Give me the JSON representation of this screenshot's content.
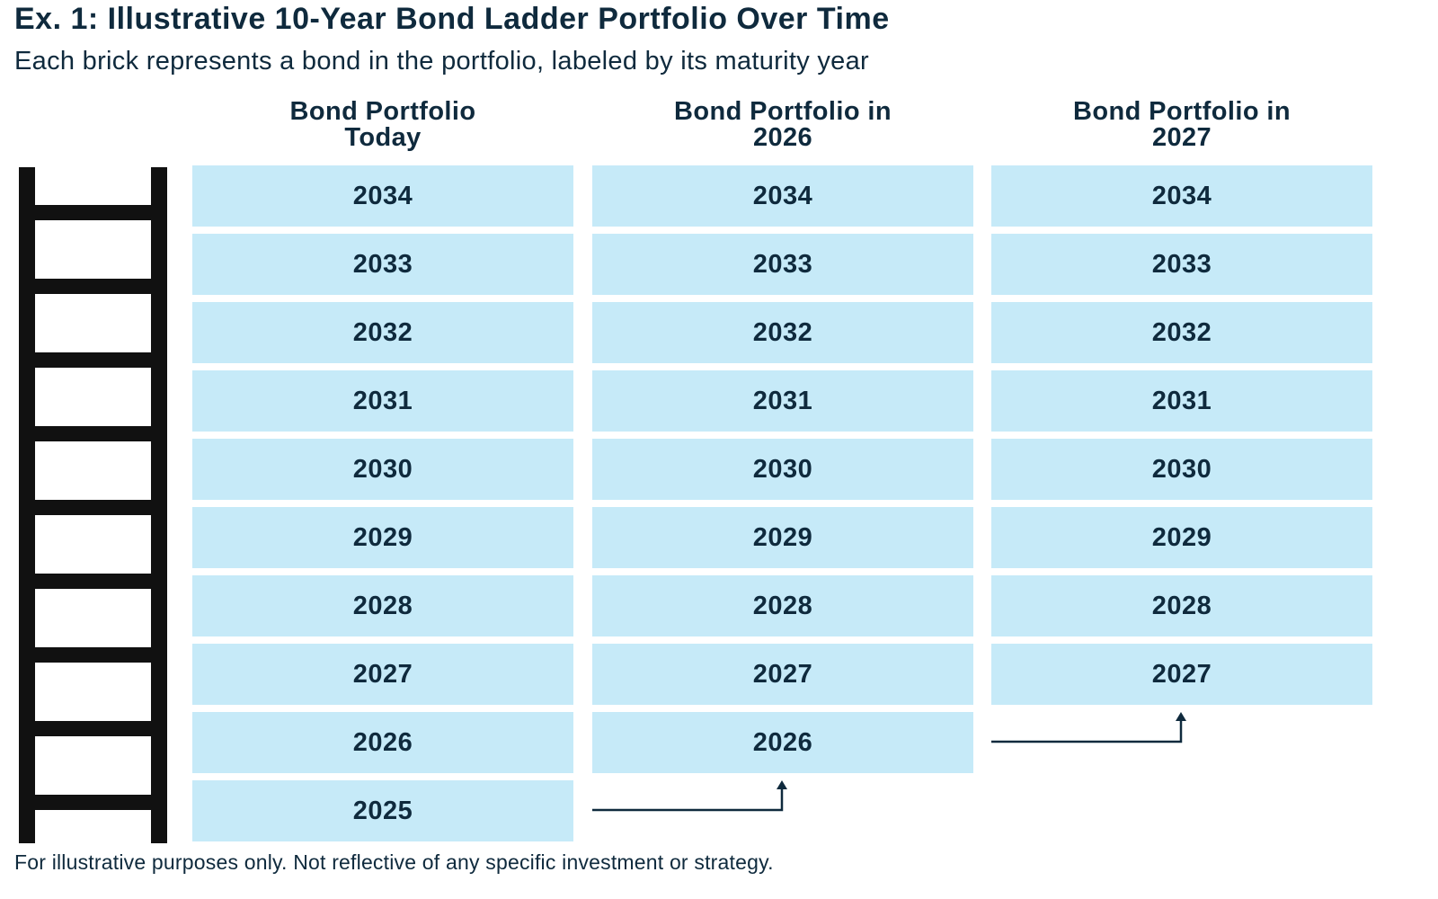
{
  "title": "Ex. 1: Illustrative 10-Year Bond Ladder Portfolio Over Time",
  "subtitle": "Each brick represents a bond in the portfolio, labeled by its maturity year",
  "columns": [
    {
      "header_line1": "Bond Portfolio",
      "header_line2": "Today",
      "bonds": [
        "2034",
        "2033",
        "2032",
        "2031",
        "2030",
        "2029",
        "2028",
        "2027",
        "2026",
        "2025"
      ]
    },
    {
      "header_line1": "Bond Portfolio in",
      "header_line2": "2026",
      "bonds": [
        "2034",
        "2033",
        "2032",
        "2031",
        "2030",
        "2029",
        "2028",
        "2027",
        "2026"
      ]
    },
    {
      "header_line1": "Bond Portfolio in",
      "header_line2": "2027",
      "bonds": [
        "2034",
        "2033",
        "2032",
        "2031",
        "2030",
        "2029",
        "2028",
        "2027"
      ]
    }
  ],
  "footnote": "For illustrative purposes only. Not reflective of any specific investment or strategy.",
  "colors": {
    "brick": "#c6eaf8",
    "text": "#0f2a3d",
    "ladder": "#111111"
  },
  "icons": [
    "ladder-icon",
    "arrow-up-icon"
  ]
}
